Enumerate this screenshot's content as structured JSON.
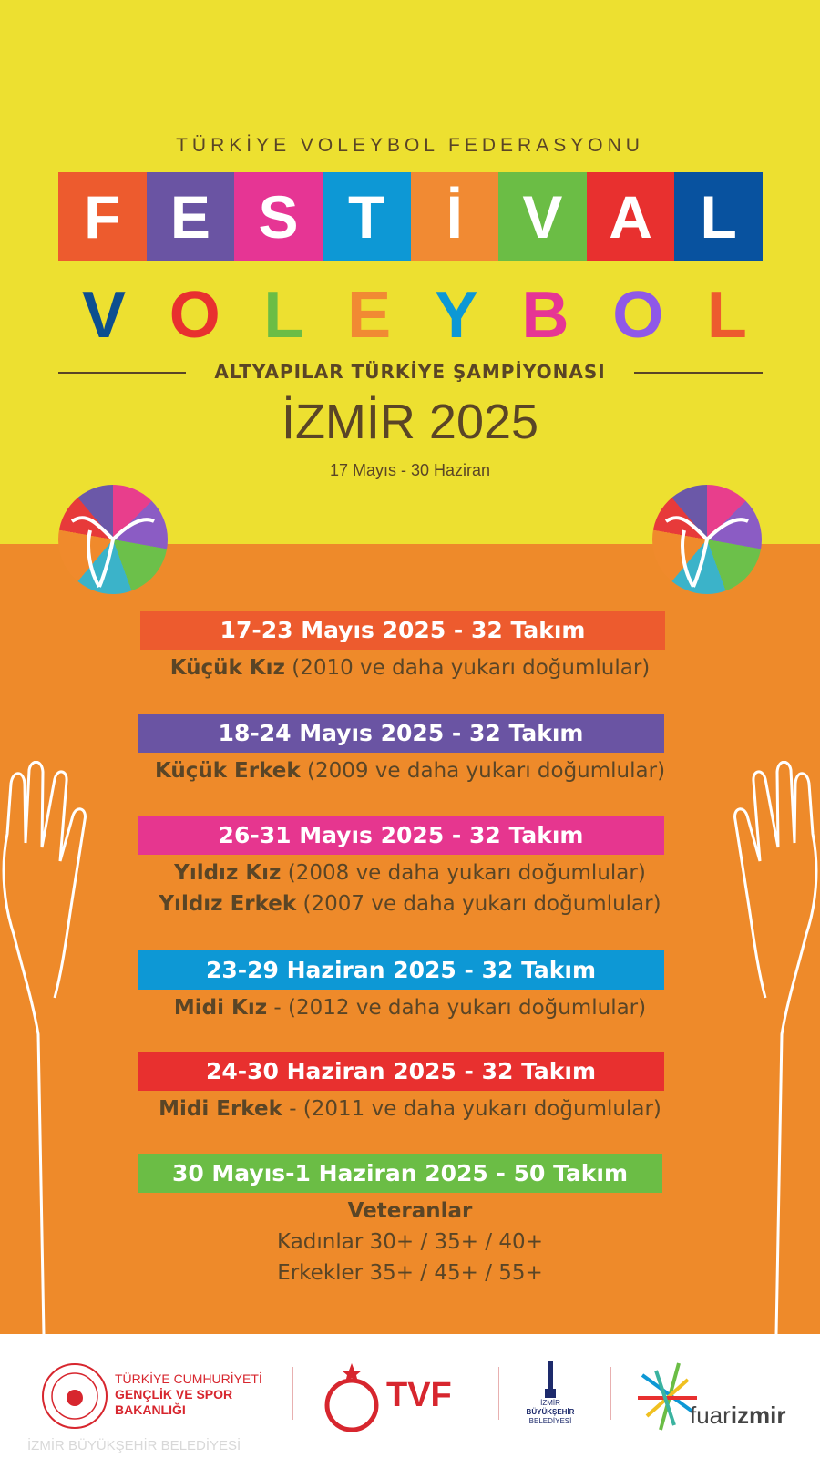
{
  "header": {
    "organization": "TÜRKİYE VOLEYBOL FEDERASYONU",
    "festival_letters": [
      "F",
      "E",
      "S",
      "T",
      "İ",
      "V",
      "A",
      "L"
    ],
    "festival_colors": [
      "#ed5b2e",
      "#6a54a3",
      "#e63594",
      "#0d98d5",
      "#f18a33",
      "#6bbd45",
      "#e8302f",
      "#08529f"
    ],
    "voleybol_letters": [
      "V",
      "O",
      "L",
      "E",
      "Y",
      "B",
      "O",
      "L"
    ],
    "voleybol_colors": [
      "#0c4f8f",
      "#e8302f",
      "#6bbd45",
      "#f18a33",
      "#0d98d5",
      "#e63594",
      "#8f58e8",
      "#ed5b2e"
    ],
    "subtitle": "ALTYAPILAR TÜRKİYE ŞAMPİYONASI",
    "city_year": "İZMİR 2025",
    "date_range": "17 Mayıs - 30 Haziran"
  },
  "schedule": [
    {
      "title": "17-23 Mayıs 2025 - 32 Takım",
      "color": "#ed5b2e",
      "lines": [
        {
          "bold": "Küçük Kız",
          "rest": " (2010 ve daha yukarı doğumlular)"
        }
      ]
    },
    {
      "title": "18-24 Mayıs 2025 - 32 Takım",
      "color": "#6a54a3",
      "lines": [
        {
          "bold": "Küçük Erkek",
          "rest": " (2009 ve daha yukarı doğumlular)"
        }
      ]
    },
    {
      "title": "26-31 Mayıs 2025 - 32 Takım",
      "color": "#e6368f",
      "lines": [
        {
          "bold": "Yıldız Kız",
          "rest": " (2008 ve daha yukarı doğumlular)"
        },
        {
          "bold": "Yıldız Erkek",
          "rest": " (2007 ve daha yukarı doğumlular)"
        }
      ]
    },
    {
      "title": "23-29 Haziran 2025 - 32 Takım",
      "color": "#0d98d5",
      "lines": [
        {
          "bold": "Midi Kız",
          "rest": " - (2012 ve daha yukarı doğumlular)"
        }
      ]
    },
    {
      "title": "24-30 Haziran 2025 - 32 Takım",
      "color": "#e8302f",
      "lines": [
        {
          "bold": "Midi Erkek",
          "rest": " - (2011 ve daha yukarı doğumlular)"
        }
      ]
    },
    {
      "title": "30 Mayıs-1 Haziran 2025 - 50 Takım",
      "color": "#6bbd45",
      "lines": [
        {
          "bold": "Veteranlar",
          "rest": ""
        },
        {
          "bold": "",
          "rest": "Kadınlar 30+ / 35+ / 40+"
        },
        {
          "bold": "",
          "rest": "Erkekler 35+ / 45+ / 55+"
        }
      ]
    }
  ],
  "footer": {
    "ministry": [
      "TÜRKİYE CUMHURİYETİ",
      "GENÇLİK VE SPOR",
      "BAKANLIĞI"
    ],
    "tvf": "TVF",
    "izmir_bb": [
      "İZMİR",
      "BÜYÜKŞEHİR",
      "BELEDİYESİ"
    ],
    "fuar": {
      "light": "fuar",
      "bold": "izmir"
    },
    "watermark": "İZMİR BÜYÜKŞEHİR BELEDİYESİ"
  },
  "colors": {
    "yellow": "#ede030",
    "orange": "#ee8a2a",
    "text_brown": "#5a4526",
    "red": "#e8302f"
  }
}
